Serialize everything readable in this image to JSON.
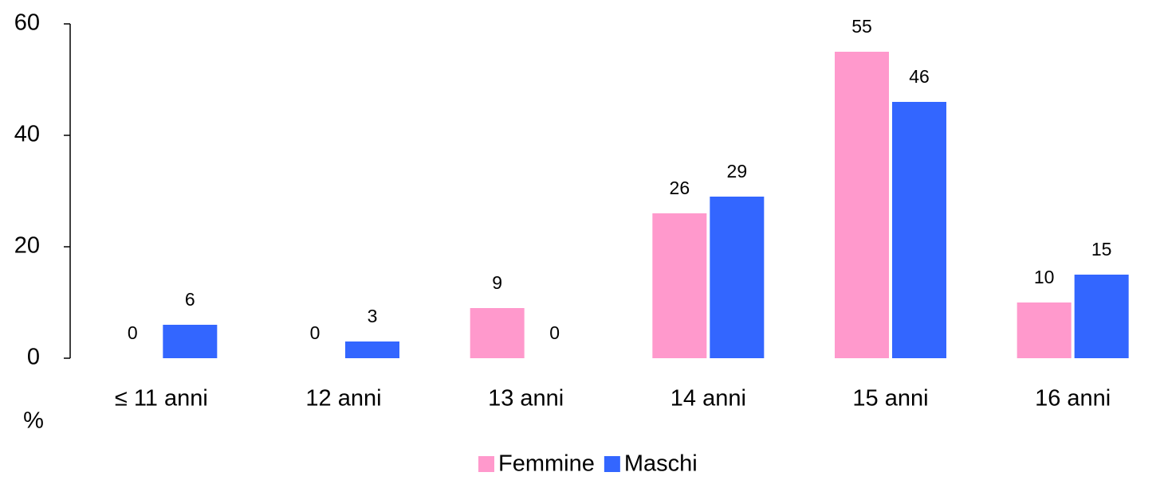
{
  "chart_data": {
    "type": "bar",
    "categories": [
      "≤ 11 anni",
      "12 anni",
      "13 anni",
      "14 anni",
      "15 anni",
      "16 anni"
    ],
    "series": [
      {
        "name": "Femmine",
        "color": "#ff99cc",
        "values": [
          0,
          0,
          9,
          26,
          55,
          10
        ]
      },
      {
        "name": "Maschi",
        "color": "#3366ff",
        "values": [
          6,
          3,
          0,
          29,
          46,
          15
        ]
      }
    ],
    "y_label": "%",
    "ylim": [
      0,
      60
    ],
    "yticks": [
      0,
      20,
      40,
      60
    ],
    "grid": false,
    "legend": "bottom"
  }
}
